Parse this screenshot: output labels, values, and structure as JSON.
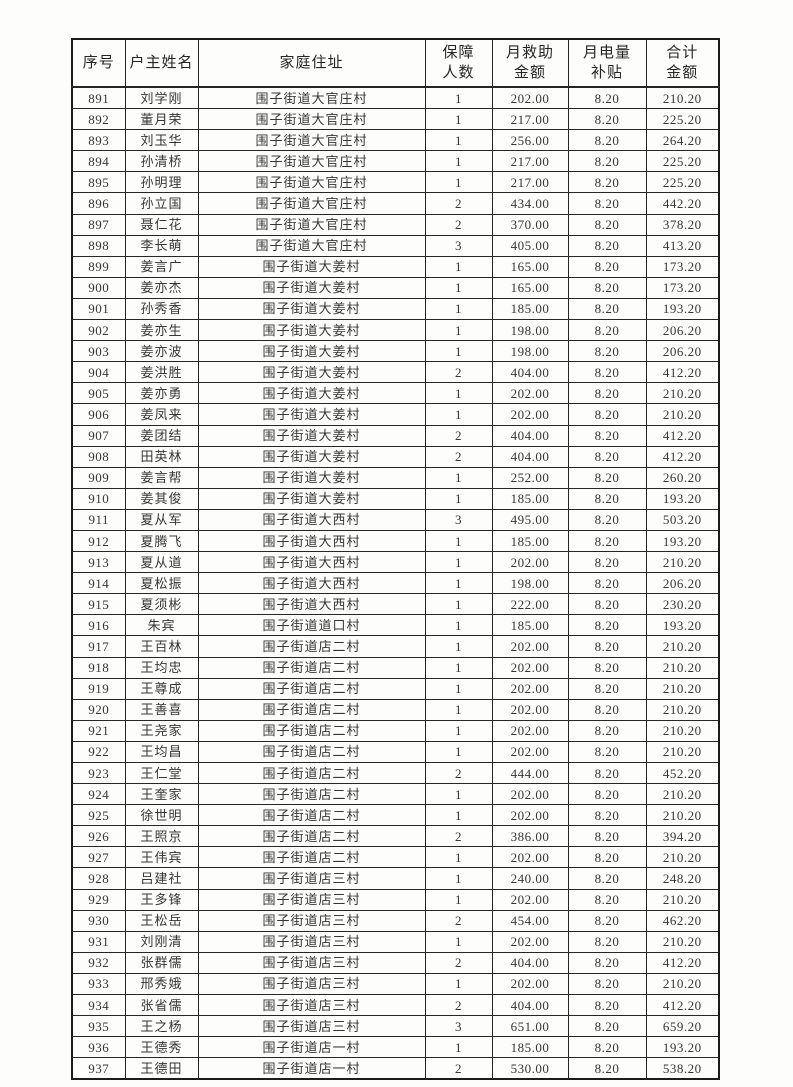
{
  "table": {
    "columns": [
      {
        "key": "seq",
        "label": "序号"
      },
      {
        "key": "name",
        "label": "户主姓名"
      },
      {
        "key": "address",
        "label": "家庭住址"
      },
      {
        "key": "persons",
        "label": "保障\n人数"
      },
      {
        "key": "aid",
        "label": "月救助\n金额"
      },
      {
        "key": "electric",
        "label": "月电量\n补贴"
      },
      {
        "key": "total",
        "label": "合计\n金额"
      }
    ],
    "rows": [
      [
        "891",
        "刘学刚",
        "围子街道大官庄村",
        "1",
        "202.00",
        "8.20",
        "210.20"
      ],
      [
        "892",
        "董月荣",
        "围子街道大官庄村",
        "1",
        "217.00",
        "8.20",
        "225.20"
      ],
      [
        "893",
        "刘玉华",
        "围子街道大官庄村",
        "1",
        "256.00",
        "8.20",
        "264.20"
      ],
      [
        "894",
        "孙清桥",
        "围子街道大官庄村",
        "1",
        "217.00",
        "8.20",
        "225.20"
      ],
      [
        "895",
        "孙明理",
        "围子街道大官庄村",
        "1",
        "217.00",
        "8.20",
        "225.20"
      ],
      [
        "896",
        "孙立国",
        "围子街道大官庄村",
        "2",
        "434.00",
        "8.20",
        "442.20"
      ],
      [
        "897",
        "聂仁花",
        "围子街道大官庄村",
        "2",
        "370.00",
        "8.20",
        "378.20"
      ],
      [
        "898",
        "李长萌",
        "围子街道大官庄村",
        "3",
        "405.00",
        "8.20",
        "413.20"
      ],
      [
        "899",
        "姜言广",
        "围子街道大姜村",
        "1",
        "165.00",
        "8.20",
        "173.20"
      ],
      [
        "900",
        "姜亦杰",
        "围子街道大姜村",
        "1",
        "165.00",
        "8.20",
        "173.20"
      ],
      [
        "901",
        "孙秀香",
        "围子街道大姜村",
        "1",
        "185.00",
        "8.20",
        "193.20"
      ],
      [
        "902",
        "姜亦生",
        "围子街道大姜村",
        "1",
        "198.00",
        "8.20",
        "206.20"
      ],
      [
        "903",
        "姜亦波",
        "围子街道大姜村",
        "1",
        "198.00",
        "8.20",
        "206.20"
      ],
      [
        "904",
        "姜洪胜",
        "围子街道大姜村",
        "2",
        "404.00",
        "8.20",
        "412.20"
      ],
      [
        "905",
        "姜亦勇",
        "围子街道大姜村",
        "1",
        "202.00",
        "8.20",
        "210.20"
      ],
      [
        "906",
        "姜凤来",
        "围子街道大姜村",
        "1",
        "202.00",
        "8.20",
        "210.20"
      ],
      [
        "907",
        "姜团结",
        "围子街道大姜村",
        "2",
        "404.00",
        "8.20",
        "412.20"
      ],
      [
        "908",
        "田英林",
        "围子街道大姜村",
        "2",
        "404.00",
        "8.20",
        "412.20"
      ],
      [
        "909",
        "姜言帮",
        "围子街道大姜村",
        "1",
        "252.00",
        "8.20",
        "260.20"
      ],
      [
        "910",
        "姜其俊",
        "围子街道大姜村",
        "1",
        "185.00",
        "8.20",
        "193.20"
      ],
      [
        "911",
        "夏从军",
        "围子街道大西村",
        "3",
        "495.00",
        "8.20",
        "503.20"
      ],
      [
        "912",
        "夏腾飞",
        "围子街道大西村",
        "1",
        "185.00",
        "8.20",
        "193.20"
      ],
      [
        "913",
        "夏从道",
        "围子街道大西村",
        "1",
        "202.00",
        "8.20",
        "210.20"
      ],
      [
        "914",
        "夏松振",
        "围子街道大西村",
        "1",
        "198.00",
        "8.20",
        "206.20"
      ],
      [
        "915",
        "夏须彬",
        "围子街道大西村",
        "1",
        "222.00",
        "8.20",
        "230.20"
      ],
      [
        "916",
        "朱宾",
        "围子街道道口村",
        "1",
        "185.00",
        "8.20",
        "193.20"
      ],
      [
        "917",
        "王百林",
        "围子街道店二村",
        "1",
        "202.00",
        "8.20",
        "210.20"
      ],
      [
        "918",
        "王均忠",
        "围子街道店二村",
        "1",
        "202.00",
        "8.20",
        "210.20"
      ],
      [
        "919",
        "王尊成",
        "围子街道店二村",
        "1",
        "202.00",
        "8.20",
        "210.20"
      ],
      [
        "920",
        "王善喜",
        "围子街道店二村",
        "1",
        "202.00",
        "8.20",
        "210.20"
      ],
      [
        "921",
        "王尧家",
        "围子街道店二村",
        "1",
        "202.00",
        "8.20",
        "210.20"
      ],
      [
        "922",
        "王均昌",
        "围子街道店二村",
        "1",
        "202.00",
        "8.20",
        "210.20"
      ],
      [
        "923",
        "王仁堂",
        "围子街道店二村",
        "2",
        "444.00",
        "8.20",
        "452.20"
      ],
      [
        "924",
        "王奎家",
        "围子街道店二村",
        "1",
        "202.00",
        "8.20",
        "210.20"
      ],
      [
        "925",
        "徐世明",
        "围子街道店二村",
        "1",
        "202.00",
        "8.20",
        "210.20"
      ],
      [
        "926",
        "王照京",
        "围子街道店二村",
        "2",
        "386.00",
        "8.20",
        "394.20"
      ],
      [
        "927",
        "王伟宾",
        "围子街道店二村",
        "1",
        "202.00",
        "8.20",
        "210.20"
      ],
      [
        "928",
        "吕建社",
        "围子街道店三村",
        "1",
        "240.00",
        "8.20",
        "248.20"
      ],
      [
        "929",
        "王多锋",
        "围子街道店三村",
        "1",
        "202.00",
        "8.20",
        "210.20"
      ],
      [
        "930",
        "王松岳",
        "围子街道店三村",
        "2",
        "454.00",
        "8.20",
        "462.20"
      ],
      [
        "931",
        "刘刚清",
        "围子街道店三村",
        "1",
        "202.00",
        "8.20",
        "210.20"
      ],
      [
        "932",
        "张群儒",
        "围子街道店三村",
        "2",
        "404.00",
        "8.20",
        "412.20"
      ],
      [
        "933",
        "邢秀娥",
        "围子街道店三村",
        "1",
        "202.00",
        "8.20",
        "210.20"
      ],
      [
        "934",
        "张省儒",
        "围子街道店三村",
        "2",
        "404.00",
        "8.20",
        "412.20"
      ],
      [
        "935",
        "王之杨",
        "围子街道店三村",
        "3",
        "651.00",
        "8.20",
        "659.20"
      ],
      [
        "936",
        "王德秀",
        "围子街道店一村",
        "1",
        "185.00",
        "8.20",
        "193.20"
      ],
      [
        "937",
        "王德田",
        "围子街道店一村",
        "2",
        "530.00",
        "8.20",
        "538.20"
      ]
    ]
  }
}
